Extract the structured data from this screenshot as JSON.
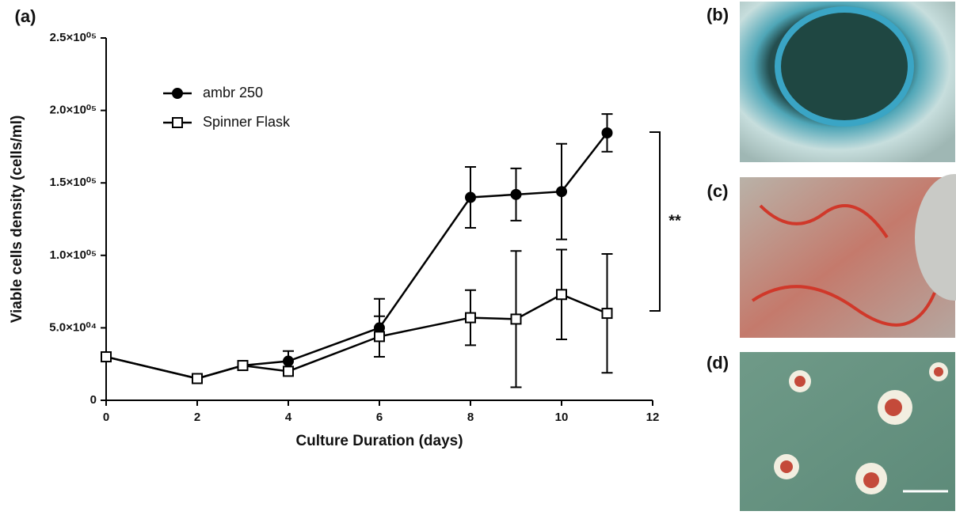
{
  "chart_data": {
    "type": "line",
    "panel_labels": [
      "(a)",
      "(b)",
      "(c)",
      "(d)"
    ],
    "xlabel": "Culture Duration (days)",
    "ylabel": "Viable cells density (cells/ml)",
    "annotation": "**",
    "x": [
      0,
      2,
      3,
      4,
      6,
      8,
      9,
      10,
      11
    ],
    "series": [
      {
        "name": "ambr 250",
        "color": "#000000",
        "marker": "circle",
        "filled": true,
        "values": [
          30000,
          15000,
          24000,
          27000,
          50000,
          140000,
          142000,
          144000,
          184500
        ],
        "errors": [
          null,
          null,
          null,
          7000,
          20000,
          21000,
          18000,
          33000,
          13000
        ]
      },
      {
        "name": "Spinner Flask",
        "color": "#000000",
        "marker": "square",
        "filled": false,
        "values": [
          30000,
          15000,
          24000,
          20000,
          44000,
          57000,
          56000,
          73000,
          60000
        ],
        "errors": [
          null,
          null,
          null,
          null,
          14000,
          19000,
          47000,
          31000,
          41000
        ]
      }
    ],
    "xlim": [
      0,
      12
    ],
    "xticks": [
      0,
      2,
      4,
      6,
      8,
      10,
      12
    ],
    "ylim": [
      0,
      250000
    ],
    "yticks": [
      0,
      {
        "value": 50000,
        "label": "5.0×10⁰⁴"
      },
      {
        "value": 100000,
        "label": "1.0×10⁰⁵"
      },
      {
        "value": 150000,
        "label": "1.5×10⁰⁵"
      },
      {
        "value": 200000,
        "label": "2.0×10⁰⁵"
      },
      {
        "value": 250000,
        "label": "2.5×10⁰⁵"
      }
    ],
    "legend": "upper left"
  }
}
